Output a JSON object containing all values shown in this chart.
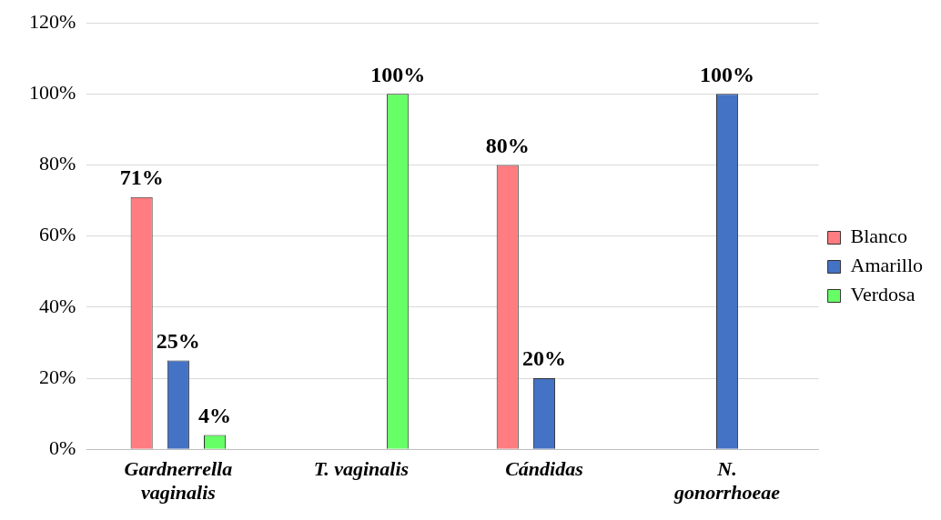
{
  "chart_data": {
    "type": "bar",
    "categories": [
      "Gardnerrella vaginalis",
      "T. vaginalis",
      "Cándidas",
      "N. gonorrhoeae"
    ],
    "series": [
      {
        "name": "Blanco",
        "color": "#ff7c80",
        "values": [
          71,
          null,
          80,
          null
        ],
        "value_labels": [
          "71%",
          null,
          "80%",
          null
        ]
      },
      {
        "name": "Amarillo",
        "color": "#4472c4",
        "values": [
          25,
          null,
          20,
          100
        ],
        "value_labels": [
          "25%",
          null,
          "20%",
          "100%"
        ]
      },
      {
        "name": "Verdosa",
        "color": "#66ff66",
        "values": [
          4,
          100,
          null,
          null
        ],
        "value_labels": [
          "4%",
          "100%",
          null,
          null
        ]
      }
    ],
    "ylim": [
      0,
      120
    ],
    "yticks": [
      {
        "value": 0,
        "label": "0%"
      },
      {
        "value": 20,
        "label": "20%"
      },
      {
        "value": 40,
        "label": "40%"
      },
      {
        "value": 60,
        "label": "60%"
      },
      {
        "value": 80,
        "label": "80%"
      },
      {
        "value": 100,
        "label": "100%"
      },
      {
        "value": 120,
        "label": "120%"
      }
    ],
    "grid": "y",
    "legend": "right"
  }
}
